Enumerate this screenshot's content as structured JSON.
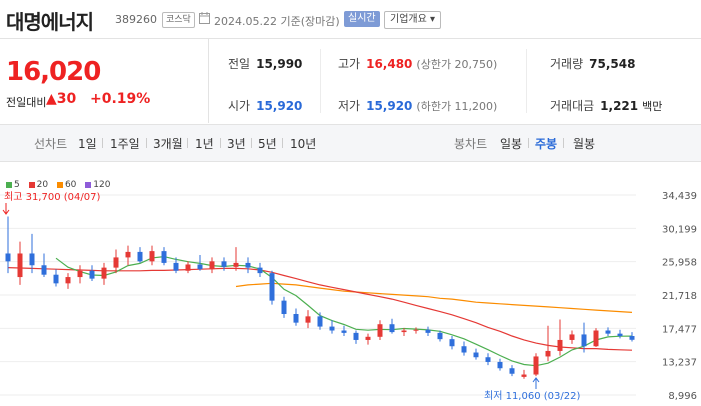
{
  "header": {
    "company_name": "대명에너지",
    "code": "389260",
    "market": "코스닥",
    "date": "2024.05.22 기준(장마감)",
    "realtime_label": "실시간",
    "info_label": "기업개요 ▾"
  },
  "price": {
    "current": "16,020",
    "change_label": "전일대비",
    "change_value": "▲30",
    "change_pct": "+0.19%"
  },
  "stats": {
    "prev_close_label": "전일",
    "prev_close": "15,990",
    "high_label": "고가",
    "high": "16,480",
    "upper_limit": "(상한가 20,750)",
    "volume_label": "거래량",
    "volume": "75,548",
    "open_label": "시가",
    "open": "15,920",
    "low_label": "저가",
    "low": "15,920",
    "lower_limit": "(하한가 11,200)",
    "amount_label": "거래대금",
    "amount": "1,221",
    "amount_unit": "백만"
  },
  "tabs": {
    "line_chart": "선차트",
    "d1": "1일",
    "w1": "1주일",
    "m3": "3개월",
    "y1": "1년",
    "y3": "3년",
    "y5": "5년",
    "y10": "10년",
    "candle_chart": "봉차트",
    "daily": "일봉",
    "weekly": "주봉",
    "monthly": "월봉"
  },
  "chart_data": {
    "type": "candlestick",
    "legend": [
      {
        "name": "5",
        "color": "#4caf50"
      },
      {
        "name": "20",
        "color": "#e53935"
      },
      {
        "name": "60",
        "color": "#fb8c00"
      },
      {
        "name": "120",
        "color": "#8e5cd9"
      }
    ],
    "y_ticks": [
      "34,439",
      "30,199",
      "25,958",
      "21,718",
      "17,477",
      "13,237",
      "8,996"
    ],
    "ylim": [
      8996,
      34439
    ],
    "high_annotation": "최고 31,700 (04/07)",
    "low_annotation": "최저 11,060 (03/22)",
    "candles": [
      [
        27000,
        31700,
        24500,
        26000
      ],
      [
        24000,
        28500,
        23000,
        27000
      ],
      [
        27000,
        29500,
        24500,
        25500
      ],
      [
        25500,
        27000,
        24000,
        24300
      ],
      [
        24300,
        25000,
        22800,
        23200
      ],
      [
        23200,
        24500,
        22500,
        24000
      ],
      [
        24000,
        25500,
        23200,
        24800
      ],
      [
        24800,
        25500,
        23500,
        23800
      ],
      [
        23800,
        25800,
        23000,
        25200
      ],
      [
        25200,
        27500,
        24500,
        26500
      ],
      [
        26500,
        28000,
        25500,
        27200
      ],
      [
        27200,
        27800,
        25800,
        26000
      ],
      [
        26000,
        28000,
        25500,
        27300
      ],
      [
        27300,
        27800,
        25500,
        25800
      ],
      [
        25800,
        26500,
        24500,
        24800
      ],
      [
        24800,
        26000,
        24500,
        25600
      ],
      [
        25600,
        26800,
        24800,
        25000
      ],
      [
        25000,
        26500,
        24500,
        26000
      ],
      [
        26000,
        26500,
        24800,
        25300
      ],
      [
        25300,
        27800,
        24800,
        25800
      ],
      [
        25800,
        26500,
        24500,
        25200
      ],
      [
        25200,
        25800,
        24000,
        24500
      ],
      [
        24500,
        24800,
        20500,
        21000
      ],
      [
        21000,
        21500,
        18800,
        19300
      ],
      [
        19300,
        20000,
        17800,
        18200
      ],
      [
        18200,
        19800,
        17500,
        19000
      ],
      [
        19000,
        19500,
        17300,
        17700
      ],
      [
        17700,
        18500,
        16800,
        17200
      ],
      [
        17200,
        17800,
        16500,
        16900
      ],
      [
        16900,
        17200,
        15500,
        16000
      ],
      [
        16000,
        16800,
        15400,
        16400
      ],
      [
        16400,
        18500,
        16000,
        18000
      ],
      [
        18000,
        18700,
        16800,
        17000
      ],
      [
        17000,
        17500,
        16500,
        17200
      ],
      [
        17200,
        17600,
        16800,
        17300
      ],
      [
        17300,
        17700,
        16500,
        16900
      ],
      [
        16900,
        17200,
        15800,
        16100
      ],
      [
        16100,
        16500,
        14800,
        15200
      ],
      [
        15200,
        15800,
        14000,
        14400
      ],
      [
        14400,
        14900,
        13500,
        13800
      ],
      [
        13800,
        14300,
        12800,
        13200
      ],
      [
        13200,
        13600,
        12100,
        12400
      ],
      [
        12400,
        12800,
        11400,
        11700
      ],
      [
        11300,
        12200,
        11060,
        11600
      ],
      [
        11600,
        14300,
        11400,
        13900
      ],
      [
        13900,
        17800,
        13300,
        14600
      ],
      [
        14600,
        18600,
        14000,
        16000
      ],
      [
        16000,
        17200,
        15500,
        16700
      ],
      [
        16700,
        18200,
        14400,
        15200
      ],
      [
        15200,
        17500,
        15100,
        17200
      ],
      [
        17200,
        17600,
        16500,
        16800
      ],
      [
        16800,
        17300,
        16200,
        16500
      ],
      [
        16500,
        17000,
        15800,
        16020
      ]
    ],
    "ma5": [
      null,
      null,
      null,
      null,
      26400,
      25250,
      24700,
      24260,
      24200,
      24660,
      25460,
      25740,
      26440,
      26600,
      26240,
      25960,
      25740,
      25460,
      25340,
      25500,
      25420,
      25020,
      23940,
      22440,
      21640,
      20400,
      19100,
      18460,
      17960,
      17360,
      17240,
      17340,
      17300,
      17460,
      17380,
      17280,
      17100,
      16660,
      16140,
      15460,
      14760,
      14020,
      13340,
      12880,
      12720,
      13040,
      13820,
      14730,
      15210,
      15990,
      16390,
      16480,
      16490
    ],
    "ma20": [
      25200,
      25150,
      25100,
      25050,
      25000,
      24950,
      24900,
      24850,
      24800,
      24800,
      24800,
      24800,
      24850,
      24850,
      24900,
      24950,
      25000,
      25050,
      25100,
      25100,
      25050,
      24900,
      24600,
      24200,
      23800,
      23400,
      23000,
      22700,
      22400,
      22100,
      21800,
      21500,
      21200,
      20800,
      20400,
      20000,
      19600,
      19200,
      18700,
      18200,
      17600,
      17100,
      16500,
      16000,
      15600,
      15300,
      15100,
      15000,
      14900,
      14900,
      14800,
      14750,
      14700
    ],
    "ma60": [
      null,
      null,
      null,
      null,
      null,
      null,
      null,
      null,
      null,
      null,
      null,
      null,
      null,
      null,
      null,
      null,
      null,
      null,
      null,
      22800,
      23000,
      23100,
      23200,
      23100,
      23000,
      22800,
      22600,
      22400,
      22200,
      22100,
      22000,
      21900,
      21800,
      21700,
      21600,
      21500,
      21300,
      21200,
      21000,
      20800,
      20700,
      20600,
      20500,
      20400,
      20300,
      20200,
      20100,
      20000,
      19900,
      19800,
      19700,
      19600,
      19500
    ]
  }
}
